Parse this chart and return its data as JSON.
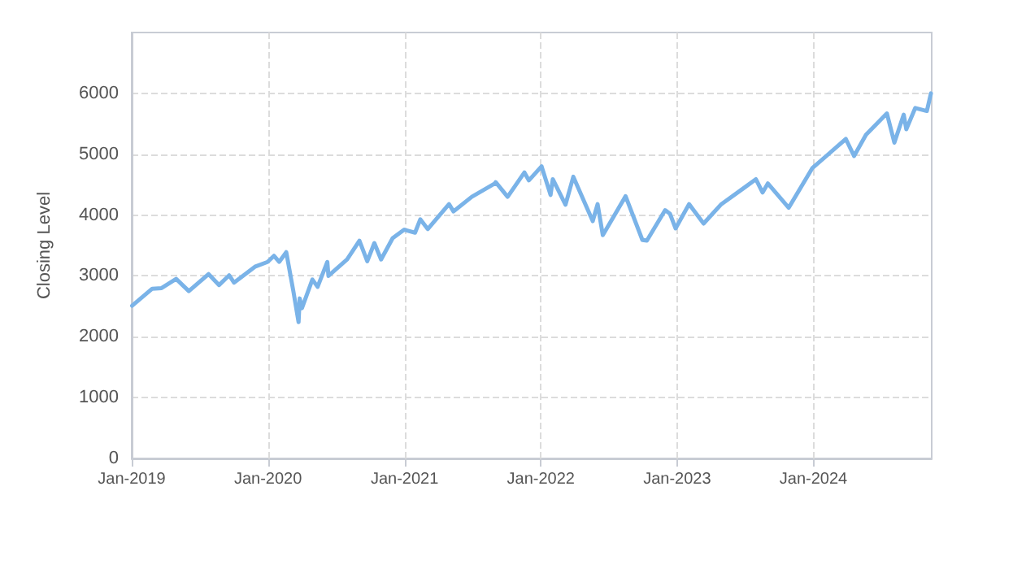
{
  "chart_data": {
    "type": "line",
    "ylabel": "Closing Level",
    "x": [
      "2019-01-02",
      "2019-02-25",
      "2019-03-22",
      "2019-04-30",
      "2019-06-03",
      "2019-07-26",
      "2019-08-23",
      "2019-09-19",
      "2019-10-02",
      "2019-11-27",
      "2019-12-31",
      "2020-01-17",
      "2020-01-31",
      "2020-02-19",
      "2020-03-09",
      "2020-03-23",
      "2020-03-26",
      "2020-04-01",
      "2020-04-29",
      "2020-05-13",
      "2020-06-08",
      "2020-06-11",
      "2020-07-31",
      "2020-09-02",
      "2020-09-23",
      "2020-10-12",
      "2020-10-30",
      "2020-11-30",
      "2020-12-31",
      "2021-01-29",
      "2021-02-12",
      "2021-03-04",
      "2021-04-30",
      "2021-05-12",
      "2021-06-30",
      "2021-08-31",
      "2021-09-02",
      "2021-10-04",
      "2021-11-18",
      "2021-11-30",
      "2022-01-03",
      "2022-01-27",
      "2022-02-02",
      "2022-03-08",
      "2022-03-29",
      "2022-05-20",
      "2022-06-02",
      "2022-06-16",
      "2022-08-16",
      "2022-09-30",
      "2022-10-12",
      "2022-11-30",
      "2022-12-13",
      "2022-12-28",
      "2023-02-02",
      "2023-03-13",
      "2023-04-28",
      "2023-06-30",
      "2023-07-31",
      "2023-08-18",
      "2023-09-01",
      "2023-10-27",
      "2023-12-29",
      "2024-02-29",
      "2024-03-28",
      "2024-04-19",
      "2024-05-21",
      "2024-07-16",
      "2024-08-05",
      "2024-08-30",
      "2024-09-06",
      "2024-09-30",
      "2024-10-31",
      "2024-11-11",
      "2024-11-13"
    ],
    "series": [
      {
        "color": "#7ab3e8",
        "values": [
          2510,
          2790,
          2800,
          2950,
          2750,
          3030,
          2850,
          3010,
          2890,
          3150,
          3230,
          3330,
          3230,
          3390,
          2750,
          2240,
          2630,
          2470,
          2940,
          2820,
          3230,
          3000,
          3270,
          3580,
          3240,
          3540,
          3270,
          3620,
          3760,
          3710,
          3930,
          3770,
          4180,
          4060,
          4300,
          4520,
          4540,
          4300,
          4700,
          4570,
          4800,
          4330,
          4590,
          4170,
          4630,
          3900,
          4180,
          3670,
          4310,
          3590,
          3580,
          4080,
          4020,
          3780,
          4180,
          3860,
          4170,
          4450,
          4590,
          4370,
          4520,
          4120,
          4770,
          5100,
          5250,
          4970,
          5320,
          5670,
          5190,
          5650,
          5410,
          5760,
          5710,
          6000,
          5990
        ]
      }
    ],
    "xlim": [
      "2019-01-01",
      "2024-11-13"
    ],
    "xticks": [
      {
        "value": "2019-01-01",
        "label": "Jan-2019"
      },
      {
        "value": "2020-01-01",
        "label": "Jan-2020"
      },
      {
        "value": "2021-01-01",
        "label": "Jan-2021"
      },
      {
        "value": "2022-01-01",
        "label": "Jan-2022"
      },
      {
        "value": "2023-01-01",
        "label": "Jan-2023"
      },
      {
        "value": "2024-01-01",
        "label": "Jan-2024"
      }
    ],
    "ylim": [
      0,
      7000
    ],
    "yticks": [
      0,
      1000,
      2000,
      3000,
      4000,
      5000,
      6000
    ],
    "grid": true,
    "marker": "none",
    "line_style": "solid"
  }
}
